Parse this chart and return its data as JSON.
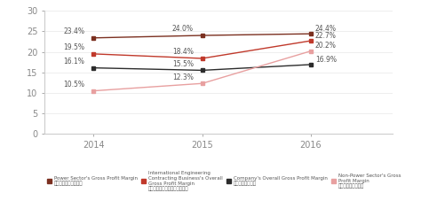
{
  "years": [
    2014,
    2015,
    2016
  ],
  "series": [
    {
      "name_en": "Power Sector's Gross Profit Margin",
      "name_zh": "电力能源板块的毛利率",
      "values": [
        23.4,
        24.0,
        24.4
      ],
      "color": "#7b3020",
      "labels": [
        "23.4%",
        "24.0%",
        "24.4%"
      ]
    },
    {
      "name_en": "International Engineering\nContracting Business's Overall\nGross Profit Margin",
      "name_zh": "国际工程承包业务的综合毛利率",
      "values": [
        19.5,
        18.4,
        22.7
      ],
      "color": "#c0392b",
      "labels": [
        "19.5%",
        "18.4%",
        "22.7%"
      ]
    },
    {
      "name_en": "Company's Overall Gross Profit Margin",
      "name_zh": "公司的综合毛利率",
      "values": [
        16.1,
        15.5,
        16.9
      ],
      "color": "#2c2c2c",
      "labels": [
        "16.1%",
        "15.5%",
        "16.9%"
      ]
    },
    {
      "name_en": "Non-Power Sector's Gross\nProfit Margin",
      "name_zh": "非电力板块的毛利率",
      "values": [
        10.5,
        12.3,
        20.2
      ],
      "color": "#e8a0a0",
      "labels": [
        "10.5%",
        "12.3%",
        "20.2%"
      ]
    }
  ],
  "ylim": [
    0,
    30
  ],
  "yticks": [
    0,
    5,
    10,
    15,
    20,
    25,
    30
  ],
  "xticks": [
    2014,
    2015,
    2016
  ],
  "bg_color": "#ffffff",
  "plot_bg": "#ffffff",
  "spine_color": "#cccccc",
  "grid_color": "#e8e8e8",
  "tick_color": "#888888",
  "label_color": "#555555",
  "xlim": [
    2013.55,
    2016.75
  ]
}
